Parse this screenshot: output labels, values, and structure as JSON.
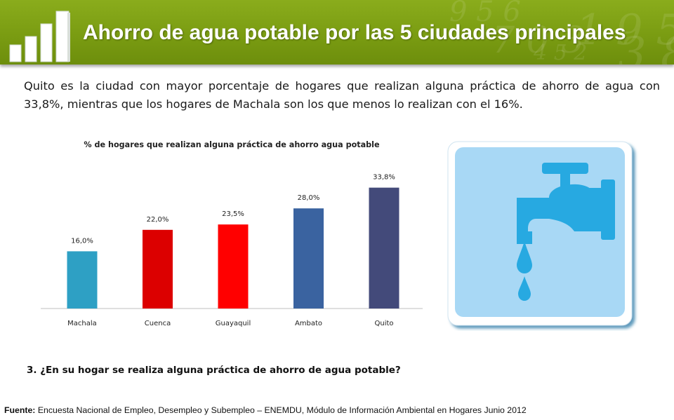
{
  "header": {
    "title": "Ahorro de agua potable por las 5 ciudades principales",
    "logo_icon": "bar-chart-icon",
    "background_color": "#7a9c12"
  },
  "description": "Quito es la ciudad con mayor porcentaje de hogares que realizan alguna práctica de ahorro de agua con 33,8%, mientras que los hogares de Machala son los que menos lo realizan con el 16%.",
  "chart_data": {
    "type": "bar",
    "title": "% de hogares que realizan alguna práctica de ahorro agua potable",
    "categories": [
      "Machala",
      "Cuenca",
      "Guayaquil",
      "Ambato",
      "Quito"
    ],
    "values": [
      16.0,
      22.0,
      23.5,
      28.0,
      33.8
    ],
    "data_labels": [
      "16,0%",
      "22,0%",
      "23,5%",
      "28,0%",
      "33,8%"
    ],
    "colors": [
      "#2ea0c4",
      "#dc0000",
      "#ff0000",
      "#3a63a0",
      "#434a7a"
    ],
    "xlabel": "",
    "ylabel": "",
    "ylim": [
      0,
      40
    ],
    "grid": false,
    "legend": "none"
  },
  "illustration": {
    "icon": "water-tap-icon",
    "background_color": "#a8d8f5",
    "icon_color": "#27a9e1"
  },
  "question": "3. ¿En su hogar se realiza alguna práctica de ahorro de agua potable?",
  "source": {
    "label": "Fuente:",
    "text": " Encuesta Nacional de Empleo, Desempleo y Subempleo – ENEMDU, Módulo de Información Ambiental en Hogares Junio 2012"
  }
}
